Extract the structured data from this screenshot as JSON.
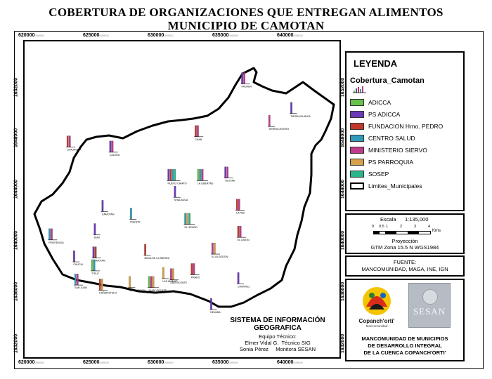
{
  "title_line1": "COBERTURA DE ORGANIZACIONES QUE ENTREGAN ALIMENTOS",
  "title_line2": "MUNICIPIO DE CAMOTAN",
  "x_ticks": [
    "620000",
    "625000",
    "630000",
    "635000",
    "640000"
  ],
  "y_ticks": [
    "1652000",
    "1648000",
    "1644000",
    "1640000",
    "1636000",
    "1632000"
  ],
  "tick_suffix": "000000",
  "legend": {
    "title": "LEYENDA",
    "layer": "Cobertura_Camotan",
    "items": [
      {
        "label": "ADICCA",
        "color": "#66c24a"
      },
      {
        "label": "PS ADICCA",
        "color": "#6a3ab8"
      },
      {
        "label": "FUNDACION Hrno. PEDRO",
        "color": "#c0392b"
      },
      {
        "label": "CENTRO SALUD",
        "color": "#2e9bb8"
      },
      {
        "label": "MINISTERIO SIERVO",
        "color": "#c03a8c"
      },
      {
        "label": "PS PARROQUIA",
        "color": "#d4a24a"
      },
      {
        "label": "SOSEP",
        "color": "#2ab58a"
      }
    ],
    "boundary_label": "Limites_Municipales"
  },
  "scale": {
    "label": "Escala",
    "ratio": "1:135,000",
    "ticks": [
      "0",
      "0.5",
      "1",
      "2",
      "3",
      "4"
    ],
    "unit": "Kms"
  },
  "projection": {
    "label": "Proyección",
    "value": "GTM Zona 15.5 N WGS1984"
  },
  "source": {
    "label": "FUENTE:",
    "value": "MANCOMUNIDAD, MAGA, INE, IGN"
  },
  "sig": {
    "line1": "SISTEMA DE INFORMACIÓN",
    "line2": "GEOGRAFICA",
    "team_label": "Equipo Técnico:",
    "member1": "Elmer Vidal G.  Técnico SIG",
    "member2": "Sonia Pérez     Monitora SESAN"
  },
  "logos": {
    "copanchorti": "Copanch'orti'",
    "copanchorti_sub": "Mancomunidad",
    "sesan": "SESAN"
  },
  "org": {
    "line1": "MANCOMUNIDAD DE MUNICIPIOS",
    "line2": "DE DESARROLLO INTEGRAL",
    "line3": "DE LA CUENCA COPANCH'ORTI'"
  },
  "sites": [
    {
      "name": "PACREN",
      "x": 636600,
      "y": 1652300,
      "bars": [
        0,
        1,
        0,
        0,
        1,
        0,
        0
      ]
    },
    {
      "name": "TIERRA BLANCA",
      "x": 640400,
      "y": 1650000,
      "bars": [
        0,
        1,
        0,
        0,
        0,
        0,
        0
      ]
    },
    {
      "name": "TIERRA CENTRO",
      "x": 638700,
      "y": 1649000,
      "bars": [
        0,
        0,
        0,
        0,
        1,
        0,
        0
      ]
    },
    {
      "name": "CHAN",
      "x": 633000,
      "y": 1648200,
      "bars": [
        0,
        0,
        1,
        0,
        1,
        0,
        0
      ]
    },
    {
      "name": "CALERA",
      "x": 626400,
      "y": 1647000,
      "bars": [
        0,
        1,
        0,
        0,
        1,
        0,
        0
      ]
    },
    {
      "name": "LA AURORA",
      "x": 623100,
      "y": 1647400,
      "bars": [
        0,
        0,
        1,
        0,
        1,
        0,
        0
      ]
    },
    {
      "name": "NUEVO CAMPO",
      "x": 630900,
      "y": 1644800,
      "bars": [
        0,
        1,
        1,
        1,
        0,
        0,
        1
      ]
    },
    {
      "name": "LA LIBERTAD",
      "x": 633200,
      "y": 1644800,
      "bars": [
        1,
        0,
        0,
        1,
        1,
        0,
        0
      ]
    },
    {
      "name": "TULISHE",
      "x": 635300,
      "y": 1645000,
      "bars": [
        0,
        1,
        0,
        0,
        1,
        0,
        0
      ]
    },
    {
      "name": "SHALAGUA",
      "x": 631400,
      "y": 1643500,
      "bars": [
        0,
        1,
        0,
        0,
        0,
        0,
        0
      ]
    },
    {
      "name": "LA PAZ",
      "x": 636200,
      "y": 1642500,
      "bars": [
        0,
        0,
        1,
        0,
        1,
        0,
        0
      ]
    },
    {
      "name": "CAMOTAN",
      "x": 625800,
      "y": 1642400,
      "bars": [
        0,
        1,
        0,
        0,
        0,
        0,
        0
      ]
    },
    {
      "name": "PUENTE",
      "x": 628000,
      "y": 1641800,
      "bars": [
        0,
        0,
        0,
        1,
        0,
        0,
        0
      ]
    },
    {
      "name": "EL JICARO",
      "x": 632200,
      "y": 1641400,
      "bars": [
        0,
        0,
        0,
        1,
        0,
        1,
        1
      ]
    },
    {
      "name": "DIAS",
      "x": 625200,
      "y": 1640600,
      "bars": [
        0,
        1,
        0,
        0,
        0,
        0,
        0
      ]
    },
    {
      "name": "EL LIMON",
      "x": 636300,
      "y": 1640400,
      "bars": [
        0,
        0,
        1,
        0,
        1,
        0,
        0
      ]
    },
    {
      "name": "PENITENCIA",
      "x": 621700,
      "y": 1640200,
      "bars": [
        0,
        0,
        0,
        1,
        1,
        0,
        0
      ]
    },
    {
      "name": "EL ALGODON",
      "x": 634300,
      "y": 1639100,
      "bars": [
        0,
        0,
        0,
        0,
        1,
        1,
        0
      ]
    },
    {
      "name": "BOCA DE LA SIERRA",
      "x": 629100,
      "y": 1639000,
      "bars": [
        0,
        0,
        1,
        0,
        0,
        0,
        0
      ]
    },
    {
      "name": "CAMOTAN",
      "x": 625100,
      "y": 1638800,
      "bars": [
        0,
        1,
        1,
        0,
        0,
        0,
        0
      ]
    },
    {
      "name": "CHUCUI",
      "x": 623600,
      "y": 1638500,
      "bars": [
        0,
        1,
        0,
        0,
        0,
        0,
        0
      ]
    },
    {
      "name": "TITILE",
      "x": 625000,
      "y": 1637800,
      "bars": [
        1,
        0,
        0,
        1,
        0,
        0,
        0
      ]
    },
    {
      "name": "PRADO",
      "x": 632700,
      "y": 1637500,
      "bars": [
        0,
        0,
        1,
        0,
        1,
        0,
        0
      ]
    },
    {
      "name": "LAS ANIMAS",
      "x": 630500,
      "y": 1637200,
      "bars": [
        0,
        0,
        0,
        0,
        0,
        1,
        0
      ]
    },
    {
      "name": "SAN VICENTE",
      "x": 631100,
      "y": 1637100,
      "bars": [
        0,
        0,
        0,
        0,
        1,
        1,
        0
      ]
    },
    {
      "name": "CHANTIEL",
      "x": 636300,
      "y": 1636800,
      "bars": [
        0,
        1,
        0,
        0,
        0,
        0,
        0
      ]
    },
    {
      "name": "SAN JUAN",
      "x": 623700,
      "y": 1636700,
      "bars": [
        0,
        0,
        0,
        1,
        1,
        0,
        0
      ]
    },
    {
      "name": "JUAN VICENTE",
      "x": 629400,
      "y": 1636500,
      "bars": [
        1,
        0,
        0,
        0,
        1,
        1,
        0
      ]
    },
    {
      "name": "SHURURUCH",
      "x": 627900,
      "y": 1636500,
      "bars": [
        0,
        0,
        0,
        0,
        0,
        1,
        0
      ]
    },
    {
      "name": "CAÑAFISTULO",
      "x": 625600,
      "y": 1636300,
      "bars": [
        0,
        0,
        1,
        0,
        0,
        1,
        0
      ]
    },
    {
      "name": "NEVADA",
      "x": 634200,
      "y": 1634800,
      "bars": [
        0,
        1,
        0,
        0,
        0,
        0,
        0
      ]
    }
  ]
}
